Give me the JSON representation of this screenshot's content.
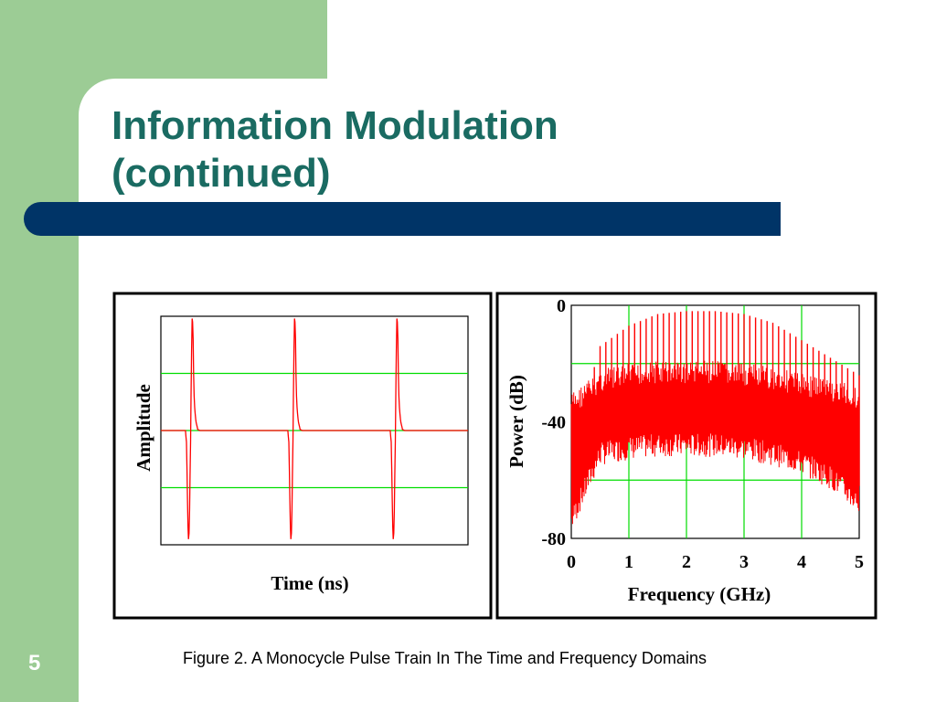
{
  "slide": {
    "title_line1": "Information Modulation",
    "title_line2": "(continued)",
    "page_number": "5",
    "caption": "Figure 2.  A Monocycle Pulse Train In The Time and Frequency Domains"
  },
  "colors": {
    "background": "#9ccc95",
    "title": "#1a6b62",
    "title_bar": "#003467",
    "signal": "#ff0000",
    "grid": "#00dd00"
  },
  "chart_data": [
    {
      "type": "line",
      "title": "",
      "xlabel": "Time (ns)",
      "ylabel": "Amplitude",
      "xlim": [
        0,
        3
      ],
      "ylim": [
        -1,
        1
      ],
      "yticks": [
        -0.5,
        0,
        0.5
      ],
      "grid": true,
      "x_tick_labels": [],
      "y_tick_labels": [],
      "pulse_times": [
        0.3,
        1.3,
        2.3
      ],
      "series": [
        {
          "color": "#ff0000",
          "x": [
            0,
            0.2,
            0.24,
            0.245,
            0.25,
            0.255,
            0.26,
            0.265,
            0.27,
            0.275,
            0.28,
            0.285,
            0.29,
            0.295,
            0.3,
            0.305,
            0.31,
            0.315,
            0.32,
            0.325,
            0.33,
            0.335,
            0.34,
            0.345,
            0.35,
            0.355,
            0.36,
            0.38,
            0.4,
            1.2,
            1.24,
            1.245,
            1.25,
            1.255,
            1.26,
            1.265,
            1.27,
            1.275,
            1.28,
            1.285,
            1.29,
            1.295,
            1.3,
            1.305,
            1.31,
            1.315,
            1.32,
            1.325,
            1.33,
            1.335,
            1.34,
            1.345,
            1.35,
            1.355,
            1.36,
            1.38,
            1.4,
            2.2,
            2.24,
            2.245,
            2.25,
            2.255,
            2.26,
            2.265,
            2.27,
            2.275,
            2.28,
            2.285,
            2.29,
            2.295,
            2.3,
            2.305,
            2.31,
            2.315,
            2.32,
            2.325,
            2.33,
            2.335,
            2.34,
            2.345,
            2.35,
            2.355,
            2.36,
            2.38,
            2.4,
            3
          ],
          "values": [
            0,
            0,
            0,
            -0.05,
            -0.1,
            -0.35,
            -0.6,
            -0.85,
            -0.95,
            -0.9,
            -0.7,
            -0.4,
            -0.1,
            0.3,
            0.7,
            0.98,
            0.95,
            0.8,
            0.5,
            0.3,
            0.2,
            0.15,
            0.1,
            0.07,
            0.05,
            0.03,
            0.01,
            0,
            0,
            0,
            0,
            -0.05,
            -0.1,
            -0.35,
            -0.6,
            -0.85,
            -0.95,
            -0.9,
            -0.7,
            -0.4,
            -0.1,
            0.3,
            0.7,
            0.98,
            0.95,
            0.8,
            0.5,
            0.3,
            0.2,
            0.15,
            0.1,
            0.07,
            0.05,
            0.03,
            0.01,
            0,
            0,
            0,
            0,
            -0.05,
            -0.1,
            -0.35,
            -0.6,
            -0.85,
            -0.95,
            -0.9,
            -0.7,
            -0.4,
            -0.1,
            0.3,
            0.7,
            0.98,
            0.95,
            0.8,
            0.5,
            0.3,
            0.2,
            0.15,
            0.1,
            0.07,
            0.05,
            0.03,
            0.01,
            0,
            0,
            0
          ]
        }
      ]
    },
    {
      "type": "line",
      "title": "",
      "xlabel": "Frequency (GHz)",
      "ylabel": "Power (dB)",
      "xlim": [
        0,
        5
      ],
      "ylim": [
        -80,
        0
      ],
      "x_tick_labels": [
        "0",
        "1",
        "2",
        "3",
        "4",
        "5"
      ],
      "y_tick_labels": [
        "0",
        "-40",
        "-80"
      ],
      "xgrid": [
        1,
        2,
        3,
        4
      ],
      "ygrid": [
        -20,
        -60
      ],
      "grid": true,
      "series": [
        {
          "color": "#ff0000",
          "envelope_x": [
            0,
            0.5,
            1,
            1.5,
            2,
            2.5,
            3,
            3.5,
            4,
            4.5,
            5
          ],
          "peak_values": [
            -50,
            -14,
            -7,
            -3,
            -2,
            -2,
            -3,
            -6,
            -12,
            -18,
            -24
          ],
          "noise_upper": [
            -30,
            -22,
            -20,
            -19,
            -19,
            -19,
            -20,
            -21,
            -23,
            -25,
            -28
          ],
          "noise_lower": [
            -78,
            -55,
            -53,
            -52,
            -52,
            -52,
            -53,
            -55,
            -58,
            -63,
            -72
          ],
          "spike_spacing_ghz": 0.1
        }
      ]
    }
  ]
}
